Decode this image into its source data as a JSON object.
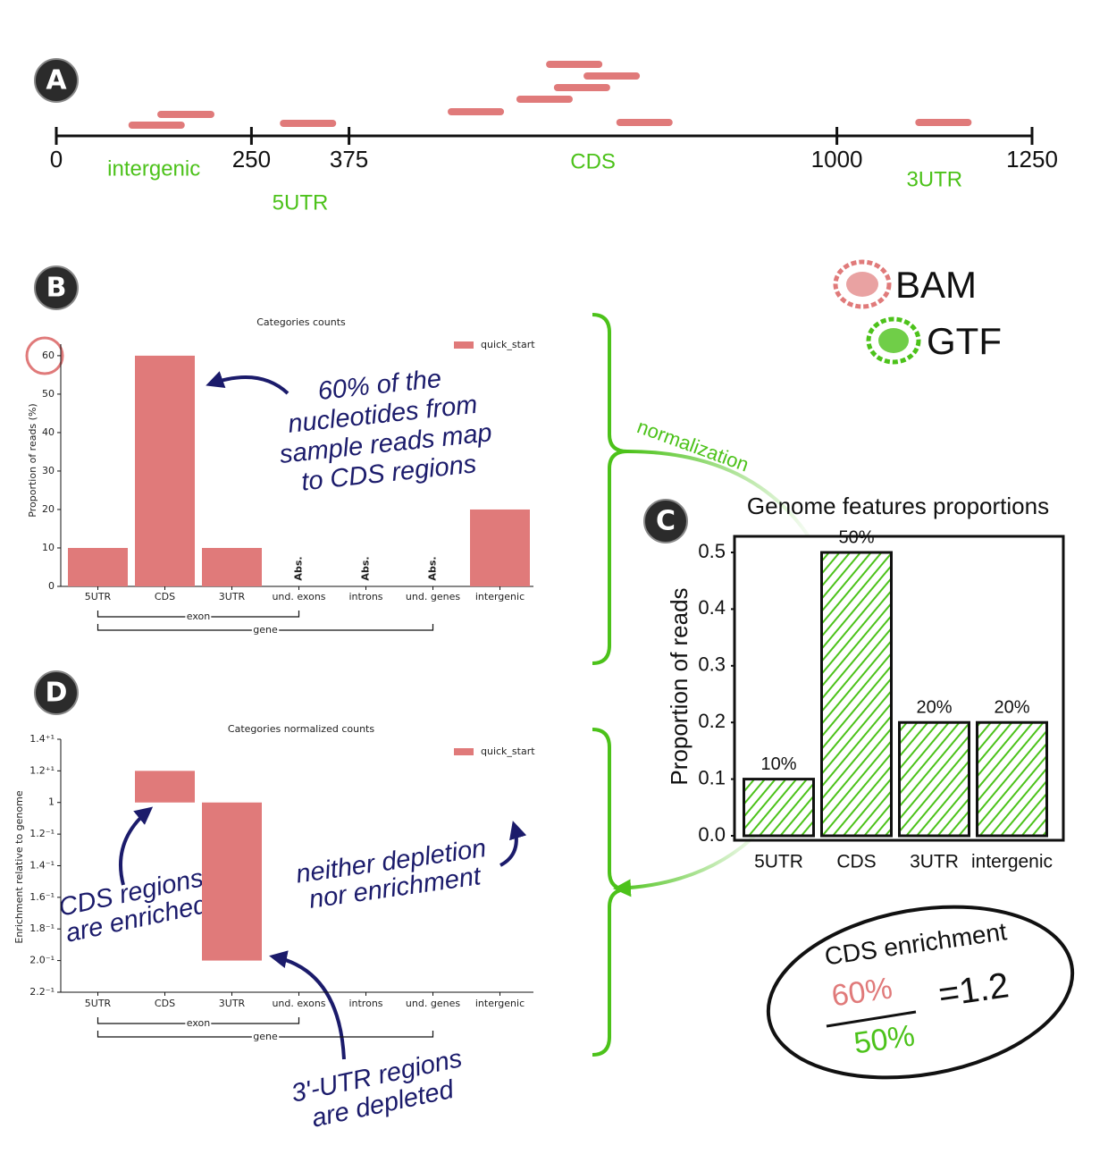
{
  "panel_labels": [
    "A",
    "B",
    "C",
    "D"
  ],
  "genome_axis": {
    "xlim": [
      0,
      1250
    ],
    "ticks": [
      0,
      250,
      375,
      1000,
      1250
    ],
    "regions": [
      "intergenic",
      "5UTR",
      "CDS",
      "3UTR"
    ],
    "reads": [
      [
        97,
        160
      ],
      [
        134,
        198
      ],
      [
        291,
        354
      ],
      [
        506,
        569
      ],
      [
        594,
        657
      ],
      [
        632,
        695
      ],
      [
        642,
        705
      ],
      [
        680,
        743
      ],
      [
        722,
        785
      ],
      [
        1105,
        1168
      ]
    ]
  },
  "chart_data": [
    {
      "type": "bar",
      "title": "Categories counts",
      "ylabel": "Proportion of reads (%)",
      "categories": [
        "5UTR",
        "CDS",
        "3UTR",
        "und. exons",
        "introns",
        "und. genes",
        "intergenic"
      ],
      "series": [
        {
          "name": "quick_start",
          "color": "#e07a7a",
          "values": [
            10,
            60,
            10,
            null,
            null,
            null,
            20
          ]
        }
      ],
      "absent_label": "Abs.",
      "groups": [
        "exon",
        "gene"
      ],
      "ylim": [
        0,
        63
      ],
      "yticks": [
        0,
        10,
        20,
        30,
        40,
        50,
        60
      ]
    },
    {
      "type": "bar",
      "title": "Genome features proportions",
      "ylabel": "Proportion of reads",
      "categories": [
        "5UTR",
        "CDS",
        "3UTR",
        "intergenic"
      ],
      "series": [
        {
          "name": "GTF",
          "color": "#4cc21a",
          "values": [
            0.1,
            0.5,
            0.2,
            0.2
          ],
          "value_labels": [
            "10%",
            "50%",
            "20%",
            "20%"
          ]
        }
      ],
      "fill": "hatch",
      "ylim": [
        0,
        0.53
      ],
      "yticks": [
        {
          "value": 0,
          "label": "0.0"
        },
        0.1,
        0.2,
        0.3,
        0.4,
        0.5
      ]
    },
    {
      "type": "bar",
      "title": "Categories normalized counts",
      "ylabel": "Enrichment relative to genome",
      "categories": [
        "5UTR",
        "CDS",
        "3UTR",
        "und. exons",
        "introns",
        "und. genes",
        "intergenic"
      ],
      "series": [
        {
          "name": "quick_start",
          "color": "#e07a7a",
          "values": [
            1,
            1.2,
            0.5,
            null,
            null,
            null,
            1
          ]
        }
      ],
      "groups": [
        "exon",
        "gene"
      ],
      "yscale": "fold",
      "ylim": [
        0.4545,
        1.4
      ],
      "yticks": [
        {
          "value": 0.4545,
          "label": "2.2⁻¹"
        },
        {
          "value": 0.5,
          "label": "2.0⁻¹"
        },
        {
          "value": 0.5556,
          "label": "1.8⁻¹"
        },
        {
          "value": 0.625,
          "label": "1.6⁻¹"
        },
        {
          "value": 0.7143,
          "label": "1.4⁻¹"
        },
        {
          "value": 0.8333,
          "label": "1.2⁻¹"
        },
        1,
        {
          "value": 1.2,
          "label": "1.2⁺¹"
        },
        {
          "value": 1.4,
          "label": "1.4⁺¹"
        }
      ]
    }
  ],
  "legend": {
    "bam": "BAM",
    "gtf": "GTF"
  },
  "annotations": {
    "b_cds": [
      "60% of the",
      "nucleotides from",
      "sample reads map",
      "to CDS regions"
    ],
    "d_enriched": [
      "CDS regions",
      "are enriched"
    ],
    "d_neutral": [
      "neither depletion",
      "nor enrichment"
    ],
    "d_depleted": [
      "3'-UTR regions",
      "are depleted"
    ],
    "normalization": "normalization"
  },
  "enrichment": {
    "title": "CDS enrichment",
    "numerator": "60%",
    "denominator": "50%",
    "result": "=1.2"
  }
}
